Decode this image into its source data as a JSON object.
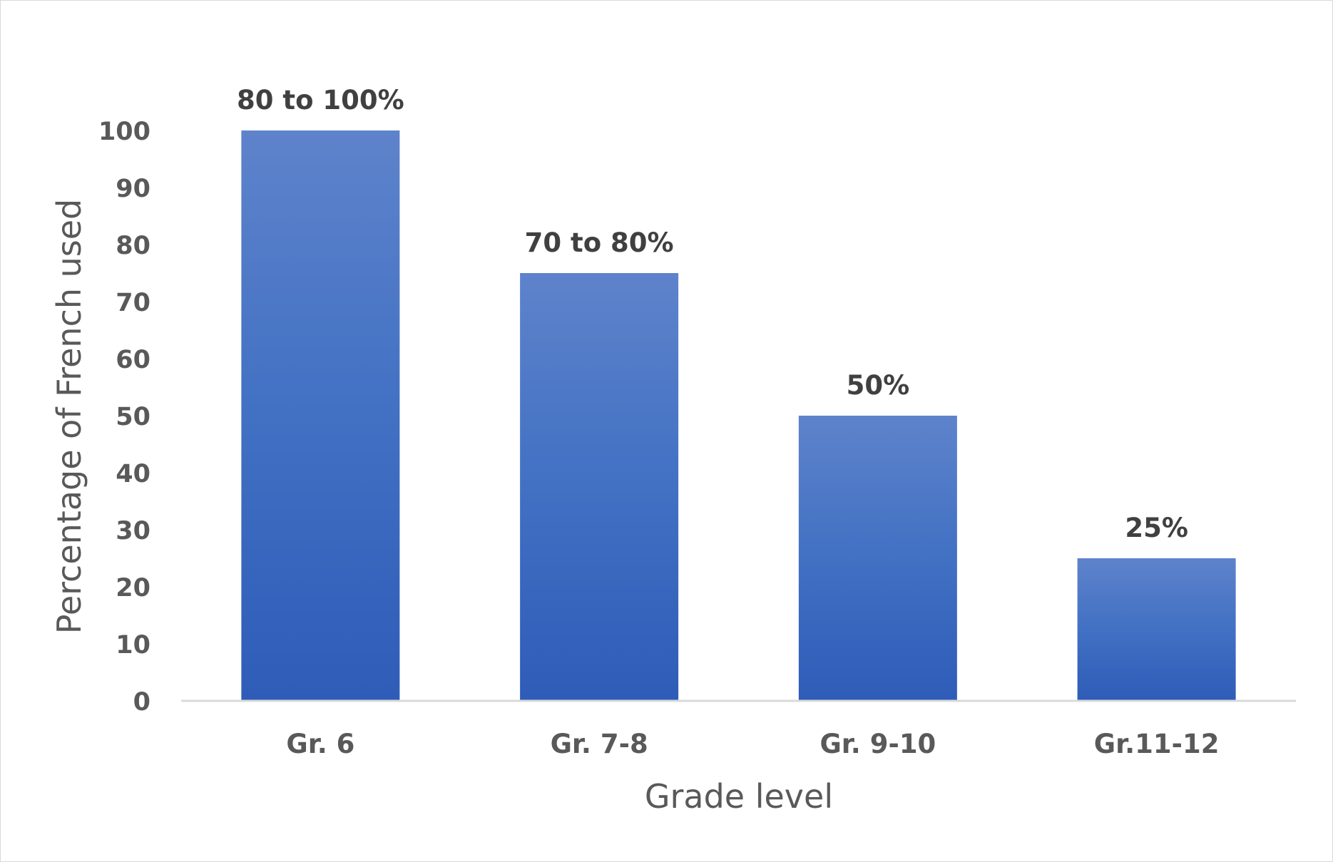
{
  "chart_data": {
    "type": "bar",
    "title": "",
    "xlabel": "Grade level",
    "ylabel": "Percentage of French used",
    "categories": [
      "Gr. 6",
      "Gr. 7-8",
      "Gr. 9-10",
      "Gr.11-12"
    ],
    "values": [
      100,
      75,
      50,
      25
    ],
    "data_labels": [
      "80 to 100%",
      "70 to 80%",
      "50%",
      "25%"
    ],
    "ylim": [
      0,
      100
    ],
    "yticks": [
      0,
      10,
      20,
      30,
      40,
      50,
      60,
      70,
      80,
      90,
      100
    ],
    "grid": false,
    "legend": "none",
    "colors": {
      "bar_top": "#5E83CB",
      "bar_mid": "#4472C4",
      "bar_bottom": "#2E5CB8",
      "axis_line": "#d9d9d9",
      "text": "#595959",
      "data_label_text": "#404040"
    }
  }
}
